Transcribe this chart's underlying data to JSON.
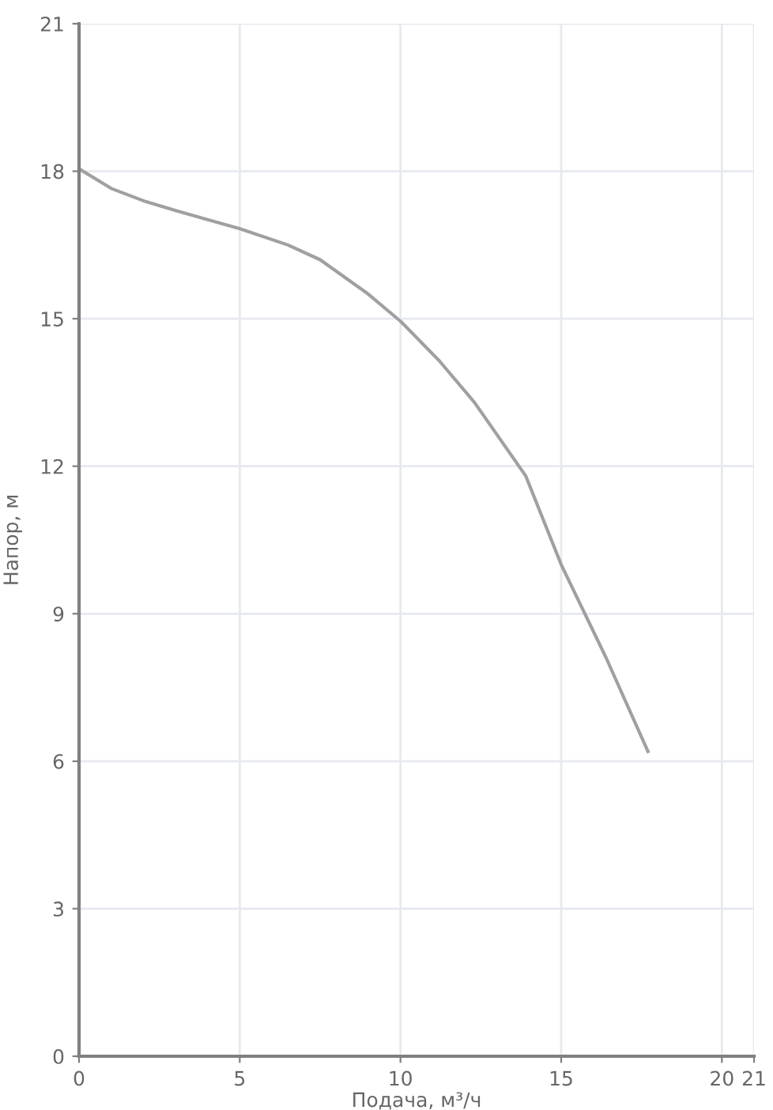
{
  "chart_data": {
    "type": "line",
    "xlabel": "Подача, м³/ч",
    "ylabel": "Напор, м",
    "x": [
      0,
      1,
      2,
      3,
      5,
      6.5,
      7.5,
      9,
      10,
      11.2,
      12.3,
      13.9,
      15,
      16.4,
      17.7
    ],
    "series": [
      {
        "color": "#a0a0a0",
        "values": [
          18.05,
          17.65,
          17.4,
          17.2,
          16.83,
          16.5,
          16.2,
          15.5,
          14.95,
          14.15,
          13.3,
          11.8,
          10.0,
          8.1,
          6.2
        ]
      }
    ],
    "xlim": [
      0,
      21
    ],
    "xticks": [
      0,
      5,
      10,
      15,
      20,
      21
    ],
    "ylim": [
      0,
      21
    ],
    "yticks": [
      0,
      3,
      6,
      9,
      12,
      15,
      18,
      21
    ],
    "grid": true,
    "marker": "none",
    "line_style": "solid"
  }
}
